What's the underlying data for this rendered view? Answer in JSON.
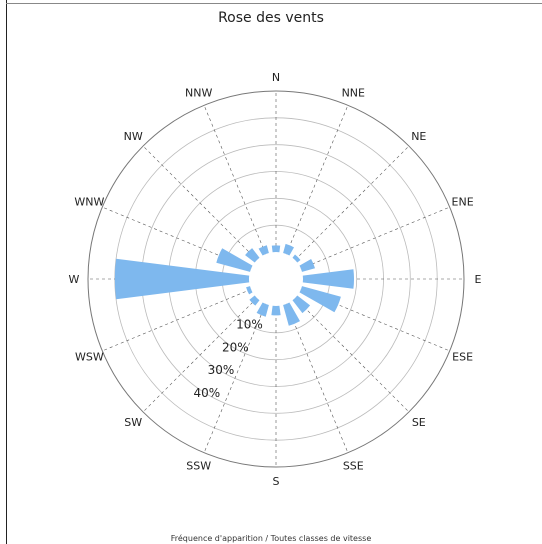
{
  "chart_data": {
    "type": "wind-rose",
    "title": "Rose des vents",
    "footer": "Fréquence d'apparition / Toutes classes de vitesse",
    "directions": [
      "N",
      "NNE",
      "NE",
      "ENE",
      "E",
      "ESE",
      "SE",
      "SSE",
      "S",
      "SSW",
      "SW",
      "WSW",
      "W",
      "WNW",
      "NW",
      "NNW"
    ],
    "values": [
      2.5,
      3.5,
      1.5,
      5,
      19,
      15,
      6,
      8,
      3.5,
      4.5,
      2.5,
      1.5,
      50,
      13,
      4.5,
      3
    ],
    "radial_ticks": [
      10,
      20,
      30,
      40
    ],
    "radial_tick_labels": [
      "10%",
      "20%",
      "30%",
      "40%"
    ],
    "rmax": 60,
    "bar_color": "#7eb8ee",
    "grid": true
  }
}
